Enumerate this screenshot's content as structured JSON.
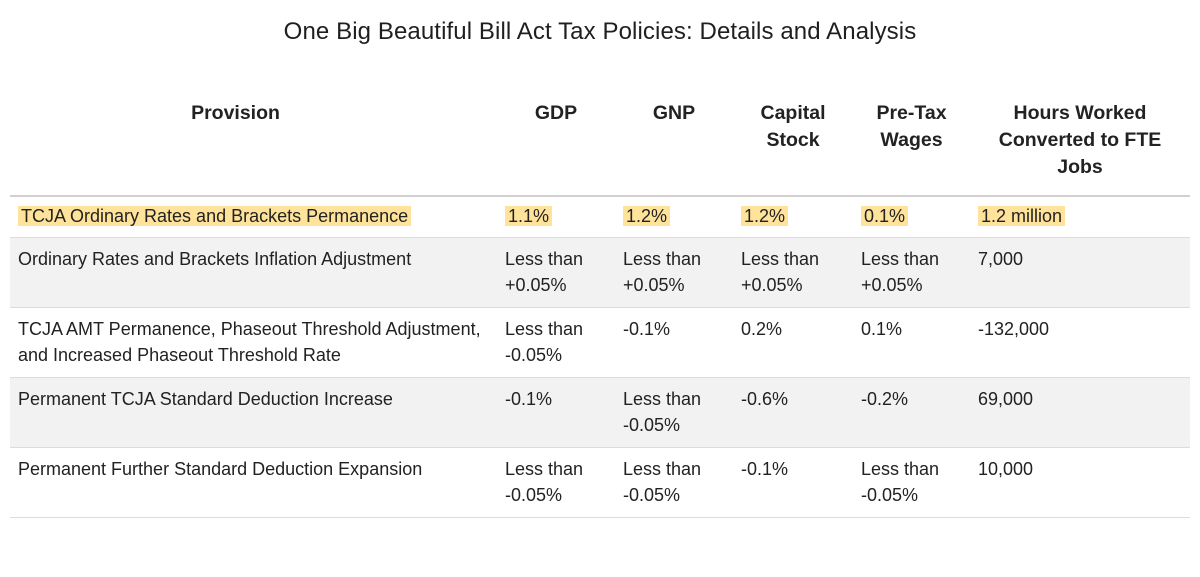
{
  "title": "One Big Beautiful Bill Act Tax Policies: Details and Analysis",
  "colors": {
    "highlight": "#ffe39a",
    "alt_row": "#f2f2f2"
  },
  "table": {
    "headers": [
      "Provision",
      "GDP",
      "GNP",
      "Capital Stock",
      "Pre-Tax Wages",
      "Hours Worked Converted to FTE Jobs"
    ],
    "rows": [
      {
        "provision": "TCJA Ordinary Rates and Brackets Permanence",
        "gdp": "1.1%",
        "gnp": "1.2%",
        "capital": "1.2%",
        "wages": "0.1%",
        "jobs": "1.2 million"
      },
      {
        "provision": "Ordinary Rates and Brackets Inflation Adjustment",
        "gdp": "Less than +0.05%",
        "gnp": "Less than +0.05%",
        "capital": "Less than +0.05%",
        "wages": "Less than +0.05%",
        "jobs": "7,000"
      },
      {
        "provision": "TCJA AMT Permanence, Phaseout Threshold Adjustment, and Increased Phaseout Threshold Rate",
        "gdp": "Less than -0.05%",
        "gnp": "-0.1%",
        "capital": "0.2%",
        "wages": "0.1%",
        "jobs": "-132,000"
      },
      {
        "provision": "Permanent TCJA Standard Deduction Increase",
        "gdp": "-0.1%",
        "gnp": "Less than -0.05%",
        "capital": "-0.6%",
        "wages": "-0.2%",
        "jobs": "69,000"
      },
      {
        "provision": "Permanent Further Standard Deduction Expansion",
        "gdp": "Less than -0.05%",
        "gnp": "Less than -0.05%",
        "capital": "-0.1%",
        "wages": "Less than -0.05%",
        "jobs": "10,000"
      }
    ]
  }
}
